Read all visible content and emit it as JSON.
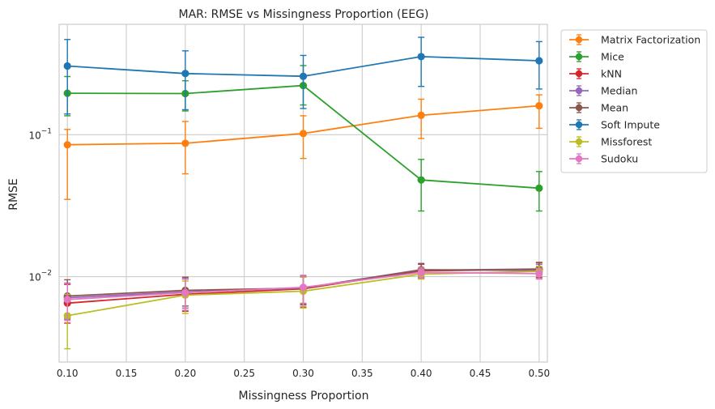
{
  "chart_data": {
    "type": "line",
    "title": "MAR: RMSE vs Missingness Proportion (EEG)",
    "xlabel": "Missingness Proportion",
    "ylabel": "RMSE",
    "yscale": "log",
    "xlim": [
      0.093,
      0.507
    ],
    "ylim": [
      0.0025,
      0.6
    ],
    "x": [
      0.1,
      0.2,
      0.3,
      0.4,
      0.5
    ],
    "x_ticks": [
      "0.10",
      "0.15",
      "0.20",
      "0.25",
      "0.30",
      "0.35",
      "0.40",
      "0.45",
      "0.50"
    ],
    "y_ticks": [
      {
        "base": "10",
        "exp": "−2",
        "value": 0.01
      },
      {
        "base": "10",
        "exp": "−1",
        "value": 0.1
      }
    ],
    "grid": true,
    "legend_position": "outside-upper-right",
    "error_bars": true,
    "series": [
      {
        "name": "Matrix Factorization",
        "color": "#ff7f0e",
        "values": [
          0.085,
          0.087,
          0.102,
          0.137,
          0.16
        ],
        "err_low": [
          0.035,
          0.053,
          0.068,
          0.094,
          0.111
        ],
        "err_high": [
          0.109,
          0.124,
          0.136,
          0.178,
          0.191
        ]
      },
      {
        "name": "Mice",
        "color": "#2ca02c",
        "values": [
          0.196,
          0.195,
          0.222,
          0.048,
          0.042
        ],
        "err_low": [
          0.136,
          0.147,
          0.162,
          0.029,
          0.029
        ],
        "err_high": [
          0.257,
          0.24,
          0.307,
          0.067,
          0.055
        ]
      },
      {
        "name": "kNN",
        "color": "#d62728",
        "values": [
          0.0065,
          0.0075,
          0.0082,
          0.011,
          0.0112
        ],
        "err_low": [
          0.0047,
          0.0057,
          0.0061,
          0.0097,
          0.0099
        ],
        "err_high": [
          0.0088,
          0.0096,
          0.0099,
          0.0122,
          0.0125
        ]
      },
      {
        "name": "Median",
        "color": "#9467bd",
        "values": [
          0.0071,
          0.0078,
          0.0083,
          0.0112,
          0.011
        ],
        "err_low": [
          0.005,
          0.006,
          0.0063,
          0.0099,
          0.0097
        ],
        "err_high": [
          0.009,
          0.0097,
          0.0101,
          0.0124,
          0.0122
        ]
      },
      {
        "name": "Mean",
        "color": "#8c564b",
        "values": [
          0.0073,
          0.008,
          0.0083,
          0.0111,
          0.0113
        ],
        "err_low": [
          0.0051,
          0.0062,
          0.0064,
          0.0099,
          0.01
        ],
        "err_high": [
          0.0095,
          0.0099,
          0.0102,
          0.0123,
          0.0126
        ]
      },
      {
        "name": "Soft Impute",
        "color": "#1f77b4",
        "values": [
          0.305,
          0.27,
          0.258,
          0.355,
          0.332
        ],
        "err_low": [
          0.14,
          0.15,
          0.153,
          0.219,
          0.21
        ],
        "err_high": [
          0.469,
          0.39,
          0.362,
          0.486,
          0.453
        ]
      },
      {
        "name": "Missforest",
        "color": "#bcbd22",
        "values": [
          0.0053,
          0.0074,
          0.0079,
          0.0104,
          0.0109
        ],
        "err_low": [
          0.0031,
          0.0055,
          0.006,
          0.0096,
          0.01
        ],
        "err_high": [
          0.0075,
          0.0093,
          0.0099,
          0.0113,
          0.0118
        ]
      },
      {
        "name": "Sudoku",
        "color": "#e377c2",
        "values": [
          0.0069,
          0.0077,
          0.0084,
          0.0107,
          0.0105
        ],
        "err_low": [
          0.0049,
          0.0058,
          0.0065,
          0.0098,
          0.0096
        ],
        "err_high": [
          0.0089,
          0.0096,
          0.0102,
          0.0116,
          0.0114
        ]
      }
    ]
  }
}
